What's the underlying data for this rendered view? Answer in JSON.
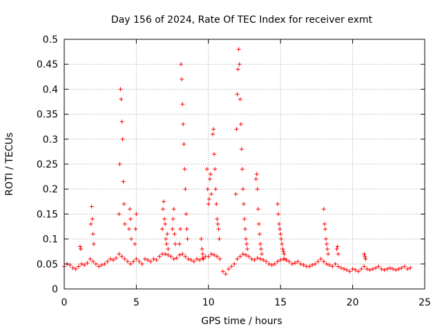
{
  "chart_data": {
    "type": "scatter",
    "title": "Day 156 of 2024, Rate Of TEC Index for receiver exmt",
    "xlabel": "GPS time / hours",
    "ylabel": "ROTI / TECUs",
    "xlim": [
      0,
      25
    ],
    "ylim": [
      0,
      0.5
    ],
    "xticks": [
      0,
      5,
      10,
      15,
      20,
      25
    ],
    "xtick_labels": [
      "0",
      "5",
      "10",
      "15",
      "20",
      "25"
    ],
    "yticks": [
      0,
      0.05,
      0.1,
      0.15,
      0.2,
      0.25,
      0.3,
      0.35,
      0.4,
      0.45,
      0.5
    ],
    "ytick_labels": [
      "0",
      "0.05",
      "0.1",
      "0.15",
      "0.2",
      "0.25",
      "0.3",
      "0.35",
      "0.4",
      "0.45",
      "0.5"
    ],
    "grid": true,
    "marker": "+",
    "color": "#ff0000",
    "series": [
      {
        "name": "ROTI",
        "x": [
          0.0,
          0.2,
          0.4,
          0.6,
          0.8,
          1.0,
          1.2,
          1.4,
          1.6,
          1.8,
          2.0,
          2.2,
          2.4,
          2.6,
          2.8,
          3.0,
          3.2,
          3.4,
          3.6,
          3.8,
          4.0,
          4.2,
          4.4,
          4.6,
          4.8,
          5.0,
          5.2,
          5.4,
          5.6,
          5.8,
          6.0,
          6.2,
          6.4,
          6.6,
          6.8,
          7.0,
          7.2,
          7.4,
          7.6,
          7.8,
          8.0,
          8.2,
          8.4,
          8.6,
          8.8,
          9.0,
          9.2,
          9.4,
          9.6,
          9.8,
          10.0,
          10.2,
          10.4,
          10.6,
          10.8,
          11.0,
          11.2,
          11.4,
          11.6,
          11.8,
          12.0,
          12.2,
          12.4,
          12.6,
          12.8,
          13.0,
          13.2,
          13.4,
          13.6,
          13.8,
          14.0,
          14.2,
          14.4,
          14.6,
          14.8,
          15.0,
          15.2,
          15.4,
          15.6,
          15.8,
          16.0,
          16.2,
          16.4,
          16.6,
          16.8,
          17.0,
          17.2,
          17.4,
          17.6,
          17.8,
          18.0,
          18.2,
          18.4,
          18.6,
          18.8,
          19.0,
          19.2,
          19.4,
          19.6,
          19.8,
          20.0,
          20.2,
          20.4,
          20.6,
          20.8,
          21.0,
          21.2,
          21.4,
          21.6,
          21.8,
          22.0,
          22.2,
          22.4,
          22.6,
          22.8,
          23.0,
          23.2,
          23.4,
          23.6,
          23.8,
          24.0,
          1.1,
          1.15,
          1.85,
          1.9,
          1.95,
          2.0,
          2.05,
          3.8,
          3.85,
          3.9,
          3.95,
          4.0,
          4.05,
          4.1,
          4.15,
          4.2,
          4.5,
          4.55,
          4.6,
          4.65,
          4.9,
          4.95,
          5.0,
          6.8,
          6.85,
          6.9,
          6.95,
          7.0,
          7.05,
          7.1,
          7.15,
          7.2,
          7.5,
          7.55,
          7.6,
          7.65,
          7.7,
          8.0,
          8.05,
          8.1,
          8.15,
          8.2,
          8.25,
          8.3,
          8.35,
          8.4,
          8.45,
          8.5,
          8.55,
          9.5,
          9.55,
          9.6,
          9.65,
          9.9,
          9.95,
          10.0,
          10.05,
          10.1,
          10.15,
          10.2,
          10.3,
          10.35,
          10.4,
          10.45,
          10.5,
          10.55,
          10.6,
          10.65,
          10.7,
          10.75,
          11.9,
          11.95,
          12.0,
          12.05,
          12.1,
          12.15,
          12.2,
          12.25,
          12.3,
          12.35,
          12.4,
          12.45,
          12.5,
          12.55,
          12.6,
          12.65,
          12.7,
          13.3,
          13.35,
          13.4,
          13.45,
          13.5,
          13.55,
          13.6,
          13.65,
          13.7,
          14.8,
          14.85,
          14.9,
          14.95,
          15.0,
          15.05,
          15.1,
          15.15,
          15.2,
          15.25,
          15.3,
          18.0,
          18.05,
          18.1,
          18.15,
          18.2,
          18.25,
          18.3,
          18.9,
          18.95,
          19.0,
          20.8,
          20.85,
          20.9
        ],
        "y": [
          0.045,
          0.05,
          0.048,
          0.042,
          0.04,
          0.045,
          0.05,
          0.048,
          0.052,
          0.06,
          0.055,
          0.05,
          0.045,
          0.048,
          0.05,
          0.055,
          0.06,
          0.058,
          0.062,
          0.07,
          0.065,
          0.06,
          0.055,
          0.05,
          0.055,
          0.06,
          0.055,
          0.05,
          0.06,
          0.058,
          0.055,
          0.06,
          0.058,
          0.065,
          0.07,
          0.07,
          0.068,
          0.065,
          0.06,
          0.062,
          0.068,
          0.07,
          0.065,
          0.06,
          0.058,
          0.055,
          0.06,
          0.058,
          0.062,
          0.065,
          0.065,
          0.07,
          0.068,
          0.065,
          0.06,
          0.035,
          0.03,
          0.04,
          0.045,
          0.05,
          0.06,
          0.065,
          0.07,
          0.068,
          0.065,
          0.06,
          0.058,
          0.062,
          0.06,
          0.058,
          0.055,
          0.05,
          0.048,
          0.05,
          0.055,
          0.058,
          0.06,
          0.058,
          0.055,
          0.05,
          0.052,
          0.055,
          0.05,
          0.048,
          0.045,
          0.045,
          0.048,
          0.05,
          0.055,
          0.06,
          0.055,
          0.05,
          0.048,
          0.045,
          0.05,
          0.045,
          0.042,
          0.04,
          0.038,
          0.035,
          0.04,
          0.038,
          0.035,
          0.04,
          0.045,
          0.04,
          0.038,
          0.04,
          0.042,
          0.045,
          0.04,
          0.038,
          0.04,
          0.042,
          0.04,
          0.038,
          0.04,
          0.042,
          0.045,
          0.04,
          0.042,
          0.085,
          0.08,
          0.13,
          0.165,
          0.14,
          0.11,
          0.09,
          0.15,
          0.25,
          0.4,
          0.38,
          0.335,
          0.3,
          0.215,
          0.17,
          0.13,
          0.12,
          0.16,
          0.14,
          0.1,
          0.09,
          0.12,
          0.15,
          0.12,
          0.16,
          0.175,
          0.14,
          0.13,
          0.1,
          0.09,
          0.11,
          0.08,
          0.12,
          0.14,
          0.16,
          0.11,
          0.09,
          0.09,
          0.12,
          0.45,
          0.42,
          0.37,
          0.33,
          0.29,
          0.24,
          0.2,
          0.15,
          0.12,
          0.1,
          0.1,
          0.08,
          0.07,
          0.06,
          0.24,
          0.2,
          0.17,
          0.18,
          0.22,
          0.23,
          0.19,
          0.31,
          0.32,
          0.27,
          0.24,
          0.2,
          0.17,
          0.14,
          0.13,
          0.12,
          0.1,
          0.19,
          0.32,
          0.39,
          0.44,
          0.48,
          0.45,
          0.38,
          0.33,
          0.28,
          0.24,
          0.2,
          0.17,
          0.14,
          0.12,
          0.1,
          0.09,
          0.08,
          0.22,
          0.23,
          0.2,
          0.16,
          0.13,
          0.11,
          0.09,
          0.08,
          0.07,
          0.17,
          0.15,
          0.13,
          0.12,
          0.11,
          0.1,
          0.09,
          0.08,
          0.075,
          0.07,
          0.06,
          0.16,
          0.13,
          0.12,
          0.1,
          0.09,
          0.08,
          0.07,
          0.08,
          0.085,
          0.07,
          0.07,
          0.065,
          0.06
        ]
      }
    ]
  }
}
